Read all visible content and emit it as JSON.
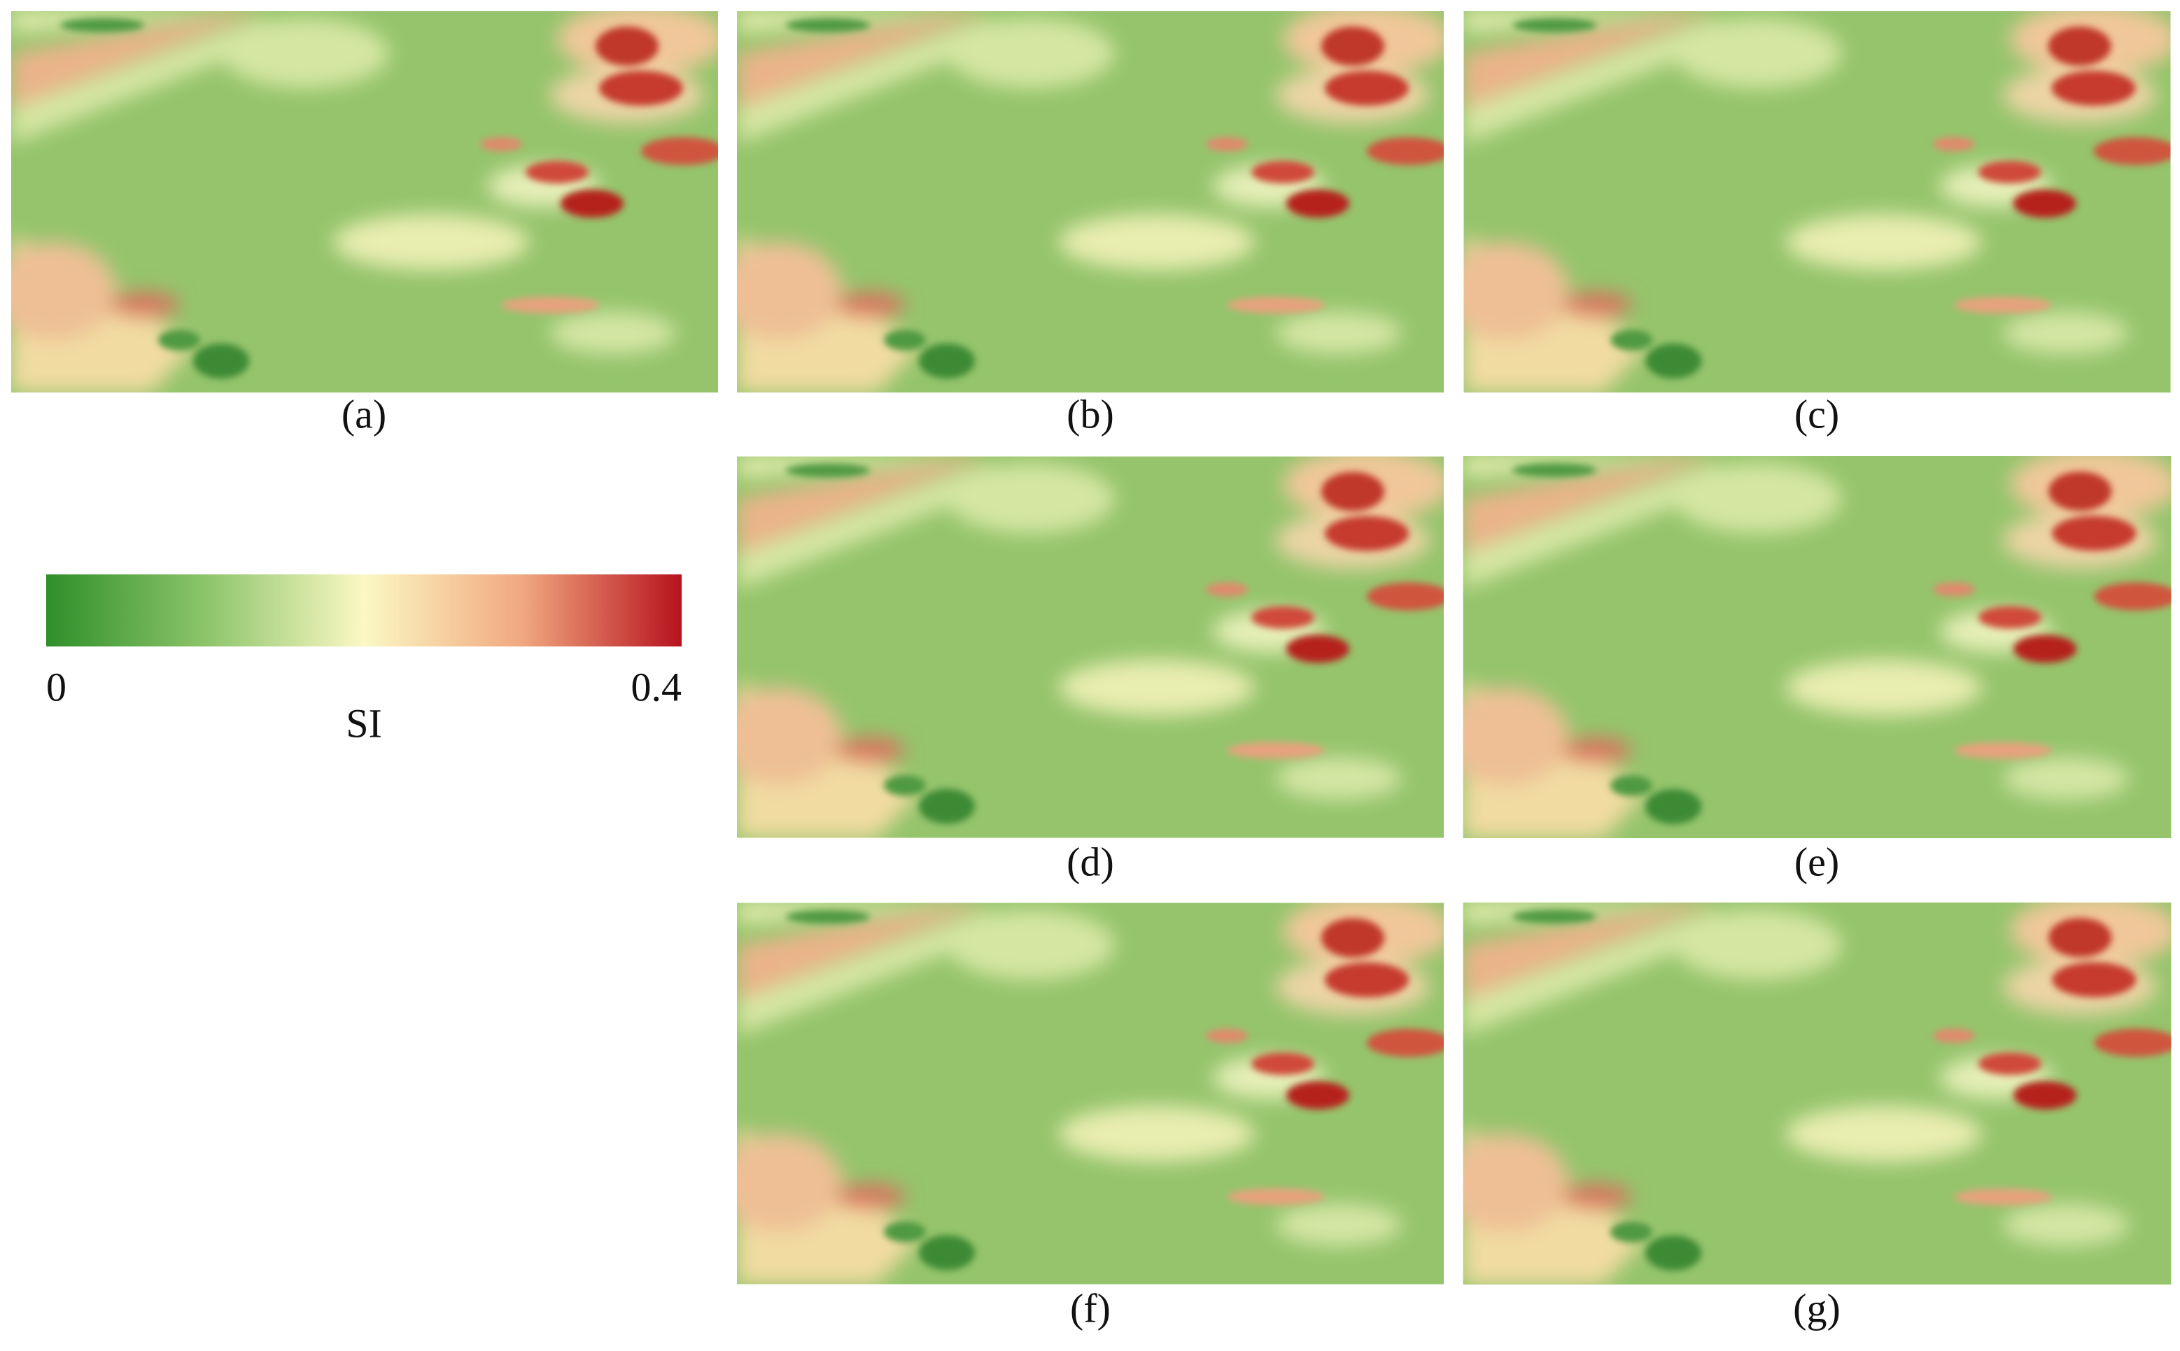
{
  "panels": [
    {
      "label": "(a)"
    },
    {
      "label": "(b)"
    },
    {
      "label": "(c)"
    },
    {
      "label": "(d)"
    },
    {
      "label": "(e)"
    },
    {
      "label": "(f)"
    },
    {
      "label": "(g)"
    }
  ],
  "colorbar": {
    "label": "SI",
    "min": 0,
    "max": 0.4,
    "ticks": [
      0,
      0.4
    ],
    "colors": [
      "#2f8f2a",
      "#8cc46a",
      "#fbf8c4",
      "#f0a77e",
      "#b7121e"
    ]
  }
}
